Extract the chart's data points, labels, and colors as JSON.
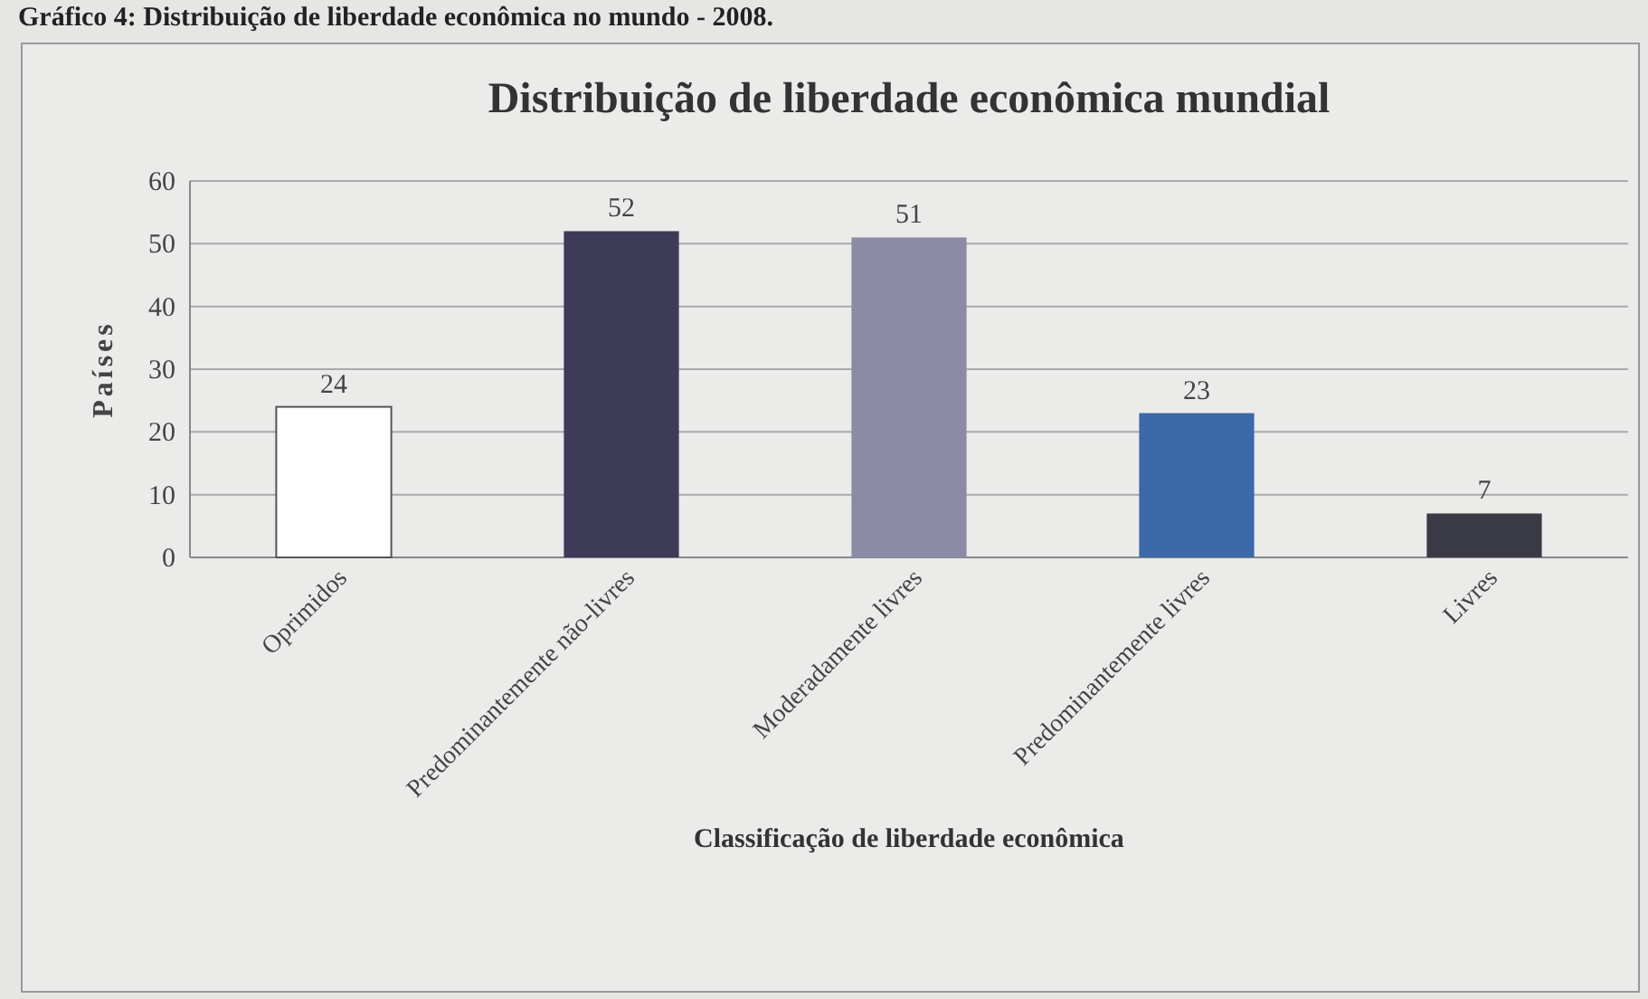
{
  "chart_data": {
    "type": "bar",
    "title": "Distribuição de liberdade econômica mundial",
    "annotations": [
      "Gráfico 4: Distribuição de liberdade econômica no mundo - 2008."
    ],
    "xlabel": "Classificação de liberdade econômica",
    "ylabel": "Países",
    "categories": [
      "Oprimidos",
      "Predominantemente não-livres",
      "Moderadamente livres",
      "Predominantemente livres",
      "Livres"
    ],
    "values": [
      24,
      52,
      51,
      23,
      7
    ],
    "colors": [
      "#ffffff",
      "#3d3b58",
      "#8b8ba5",
      "#3b69a9",
      "#3a3a47"
    ],
    "ylim": [
      0,
      60
    ],
    "yticks": [
      0,
      10,
      20,
      30,
      40,
      50,
      60
    ],
    "grid": "y",
    "data_labels": true
  }
}
